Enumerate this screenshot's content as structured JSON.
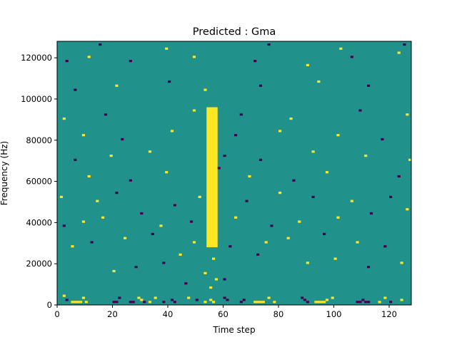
{
  "chart_data": {
    "type": "heatmap",
    "title": "Predicted : Gma",
    "xlabel": "Time step",
    "ylabel": "Frequency (Hz)",
    "xlim": [
      0,
      128
    ],
    "ylim": [
      0,
      128000
    ],
    "xticks": [
      0,
      20,
      40,
      60,
      80,
      100,
      120
    ],
    "yticks": [
      0,
      20000,
      40000,
      60000,
      80000,
      100000,
      120000
    ],
    "xtick_labels": [
      "0",
      "20",
      "40",
      "60",
      "80",
      "100",
      "120"
    ],
    "ytick_labels": [
      "0",
      "20000",
      "40000",
      "60000",
      "80000",
      "100000",
      "120000"
    ],
    "grid_shape": [
      128,
      128
    ],
    "values_legend": {
      "-1": "#440154",
      "0": "#21918c",
      "1": "#fde725"
    },
    "background_value": 0,
    "dominant_band": {
      "x_range": [
        54,
        58
      ],
      "y_range": [
        28000,
        96000
      ],
      "value": 1
    },
    "cells": [
      [
        2,
        4000,
        1
      ],
      [
        3,
        2000,
        -1
      ],
      [
        5,
        1000,
        1
      ],
      [
        6,
        1000,
        1
      ],
      [
        7,
        1000,
        1
      ],
      [
        8,
        1000,
        1
      ],
      [
        9,
        3000,
        1
      ],
      [
        10,
        1000,
        1
      ],
      [
        20,
        1000,
        -1
      ],
      [
        21,
        1000,
        -1
      ],
      [
        22,
        3000,
        -1
      ],
      [
        26,
        1000,
        -1
      ],
      [
        27,
        1000,
        -1
      ],
      [
        29,
        3000,
        1
      ],
      [
        30,
        2000,
        1
      ],
      [
        31,
        1000,
        -1
      ],
      [
        33,
        1000,
        1
      ],
      [
        35,
        3000,
        1
      ],
      [
        38,
        1000,
        -1
      ],
      [
        41,
        2000,
        -1
      ],
      [
        42,
        1000,
        -1
      ],
      [
        47,
        3000,
        1
      ],
      [
        50,
        2000,
        -1
      ],
      [
        53,
        1000,
        1
      ],
      [
        55,
        2000,
        1
      ],
      [
        56,
        1000,
        1
      ],
      [
        60,
        3000,
        -1
      ],
      [
        61,
        2000,
        -1
      ],
      [
        66,
        1000,
        -1
      ],
      [
        67,
        2000,
        -1
      ],
      [
        71,
        1000,
        1
      ],
      [
        72,
        1000,
        1
      ],
      [
        73,
        1000,
        1
      ],
      [
        74,
        1000,
        1
      ],
      [
        76,
        3000,
        1
      ],
      [
        78,
        1000,
        1
      ],
      [
        88,
        3000,
        -1
      ],
      [
        89,
        2000,
        -1
      ],
      [
        90,
        1000,
        -1
      ],
      [
        93,
        1000,
        1
      ],
      [
        94,
        1000,
        1
      ],
      [
        95,
        1000,
        1
      ],
      [
        96,
        1000,
        1
      ],
      [
        97,
        2000,
        1
      ],
      [
        99,
        3000,
        1
      ],
      [
        108,
        1000,
        -1
      ],
      [
        109,
        1000,
        -1
      ],
      [
        110,
        2000,
        -1
      ],
      [
        111,
        1000,
        -1
      ],
      [
        112,
        1000,
        -1
      ],
      [
        116,
        1000,
        1
      ],
      [
        118,
        3000,
        1
      ],
      [
        120,
        1000,
        -1
      ],
      [
        124,
        2000,
        1
      ],
      [
        55,
        8000,
        1
      ],
      [
        57,
        12000,
        1
      ],
      [
        46,
        10000,
        -1
      ],
      [
        53,
        15000,
        1
      ],
      [
        60,
        12000,
        -1
      ],
      [
        20,
        16000,
        1
      ],
      [
        28,
        18000,
        -1
      ],
      [
        38,
        20000,
        -1
      ],
      [
        44,
        24000,
        1
      ],
      [
        56,
        22000,
        1
      ],
      [
        72,
        24000,
        -1
      ],
      [
        90,
        20000,
        1
      ],
      [
        100,
        22000,
        1
      ],
      [
        112,
        18000,
        -1
      ],
      [
        124,
        20000,
        1
      ],
      [
        5,
        28000,
        1
      ],
      [
        12,
        30000,
        -1
      ],
      [
        24,
        32000,
        1
      ],
      [
        34,
        34000,
        -1
      ],
      [
        49,
        30000,
        1
      ],
      [
        62,
        28000,
        -1
      ],
      [
        75,
        30000,
        1
      ],
      [
        83,
        32000,
        1
      ],
      [
        96,
        34000,
        -1
      ],
      [
        108,
        30000,
        1
      ],
      [
        118,
        28000,
        -1
      ],
      [
        2,
        38000,
        -1
      ],
      [
        9,
        40000,
        1
      ],
      [
        16,
        42000,
        1
      ],
      [
        30,
        44000,
        -1
      ],
      [
        37,
        38000,
        1
      ],
      [
        48,
        40000,
        -1
      ],
      [
        64,
        42000,
        1
      ],
      [
        77,
        38000,
        -1
      ],
      [
        87,
        40000,
        1
      ],
      [
        101,
        42000,
        1
      ],
      [
        113,
        44000,
        -1
      ],
      [
        126,
        46000,
        1
      ],
      [
        1,
        52000,
        1
      ],
      [
        14,
        50000,
        1
      ],
      [
        21,
        54000,
        -1
      ],
      [
        42,
        48000,
        -1
      ],
      [
        51,
        52000,
        1
      ],
      [
        68,
        50000,
        -1
      ],
      [
        80,
        54000,
        1
      ],
      [
        92,
        52000,
        -1
      ],
      [
        106,
        50000,
        1
      ],
      [
        120,
        52000,
        -1
      ],
      [
        11,
        62000,
        1
      ],
      [
        26,
        60000,
        -1
      ],
      [
        39,
        64000,
        1
      ],
      [
        58,
        66000,
        -1
      ],
      [
        69,
        62000,
        1
      ],
      [
        85,
        60000,
        -1
      ],
      [
        97,
        64000,
        1
      ],
      [
        123,
        62000,
        -1
      ],
      [
        6,
        70000,
        -1
      ],
      [
        19,
        72000,
        1
      ],
      [
        33,
        74000,
        1
      ],
      [
        60,
        72000,
        -1
      ],
      [
        73,
        70000,
        -1
      ],
      [
        92,
        74000,
        1
      ],
      [
        111,
        72000,
        1
      ],
      [
        127,
        70000,
        1
      ],
      [
        9,
        82000,
        1
      ],
      [
        23,
        80000,
        -1
      ],
      [
        41,
        84000,
        1
      ],
      [
        64,
        82000,
        -1
      ],
      [
        80,
        84000,
        1
      ],
      [
        101,
        82000,
        1
      ],
      [
        117,
        80000,
        -1
      ],
      [
        2,
        90000,
        1
      ],
      [
        17,
        92000,
        -1
      ],
      [
        49,
        94000,
        1
      ],
      [
        66,
        92000,
        -1
      ],
      [
        84,
        90000,
        1
      ],
      [
        109,
        94000,
        -1
      ],
      [
        126,
        92000,
        1
      ],
      [
        6,
        104000,
        -1
      ],
      [
        21,
        106000,
        1
      ],
      [
        40,
        108000,
        -1
      ],
      [
        53,
        104000,
        1
      ],
      [
        73,
        106000,
        -1
      ],
      [
        94,
        108000,
        1
      ],
      [
        112,
        106000,
        -1
      ],
      [
        3,
        118000,
        -1
      ],
      [
        11,
        120000,
        1
      ],
      [
        26,
        118000,
        -1
      ],
      [
        49,
        120000,
        1
      ],
      [
        71,
        118000,
        -1
      ],
      [
        90,
        116000,
        1
      ],
      [
        106,
        120000,
        -1
      ],
      [
        123,
        122000,
        1
      ],
      [
        15,
        126000,
        -1
      ],
      [
        39,
        124000,
        1
      ],
      [
        76,
        126000,
        -1
      ],
      [
        102,
        124000,
        1
      ],
      [
        125,
        126000,
        -1
      ]
    ]
  }
}
